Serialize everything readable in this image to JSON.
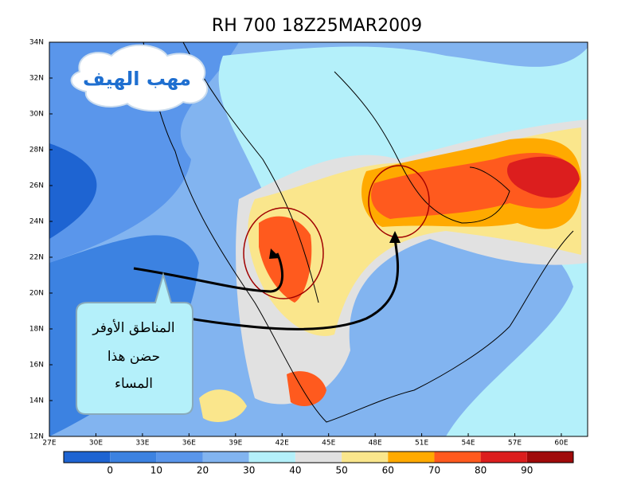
{
  "title": "RH 700 18Z25MAR2009",
  "map": {
    "lat_labels": [
      "12N",
      "14N",
      "16N",
      "18N",
      "20N",
      "22N",
      "24N",
      "26N",
      "28N",
      "30N",
      "32N",
      "34N"
    ],
    "lon_labels": [
      "27E",
      "30E",
      "33E",
      "36E",
      "39E",
      "42E",
      "45E",
      "48E",
      "51E",
      "54E",
      "57E",
      "60E"
    ]
  },
  "colorbar": {
    "colors": [
      "#1e64d2",
      "#3c82e1",
      "#5a96eb",
      "#82b4f0",
      "#b4f0fa",
      "#e1e1e1",
      "#fae68c",
      "#ffaa00",
      "#ff5a1e",
      "#dc1e1e",
      "#a00a0a"
    ],
    "labels": [
      "0",
      "10",
      "20",
      "30",
      "40",
      "50",
      "60",
      "70",
      "80",
      "90"
    ]
  },
  "annotations": {
    "wind_label": "مهب الهيف",
    "callout": [
      "المناطق الأوفر",
      "حضن هذا",
      "المساء"
    ]
  }
}
